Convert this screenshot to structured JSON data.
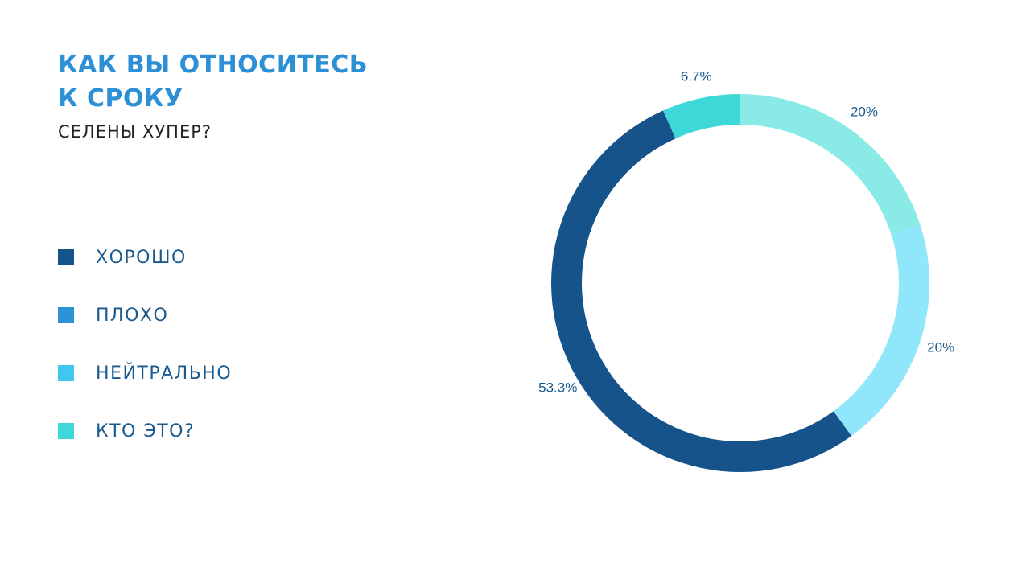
{
  "chart_data": {
    "type": "donut",
    "title": "КАК ВЫ ОТНОСИТЕСЬ К СРОКУ",
    "subtitle": "СЕЛЕНЫ ХУПЕР?",
    "categories": [
      "ХОРОШО",
      "ПЛОХО",
      "НЕЙТРАЛЬНО",
      "КТО ЭТО?"
    ],
    "values": [
      53.3,
      20,
      20,
      6.7
    ],
    "value_labels": [
      "53.3%",
      "20%",
      "20%",
      "6.7%"
    ],
    "colors": [
      "#15538a",
      "#8aeae6",
      "#90e6fb",
      "#3ed8d8"
    ],
    "legend_colors": [
      "#15538a",
      "#2d93d6",
      "#3ec8ee",
      "#3ed8d8"
    ],
    "legend": "left"
  }
}
